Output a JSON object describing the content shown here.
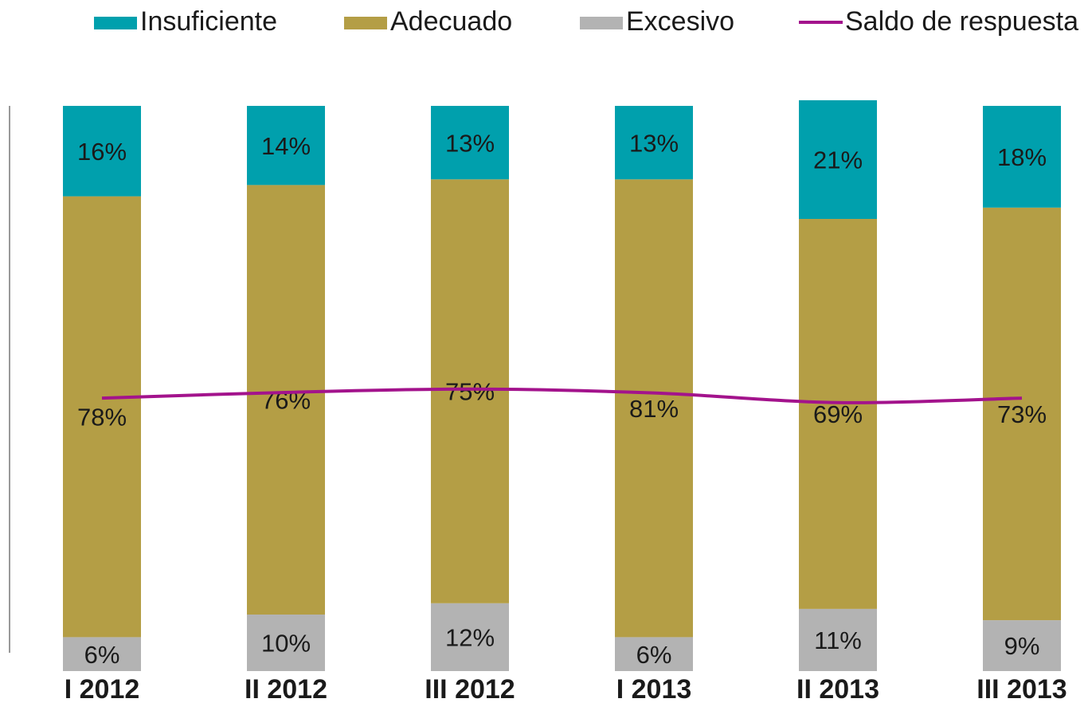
{
  "chart_data": {
    "type": "bar",
    "stacked": true,
    "categories": [
      "I 2012",
      "II 2012",
      "III 2012",
      "I 2013",
      "II 2013",
      "III 2013"
    ],
    "series": [
      {
        "name": "Insuficiente",
        "color": "#00a0ad",
        "values": [
          16,
          14,
          13,
          13,
          21,
          18
        ],
        "value_labels": [
          "16%",
          "14%",
          "13%",
          "13%",
          "21%",
          "18%"
        ]
      },
      {
        "name": "Adecuado",
        "color": "#b49e45",
        "values": [
          78,
          76,
          75,
          81,
          69,
          73
        ],
        "value_labels": [
          "78%",
          "76%",
          "75%",
          "81%",
          "69%",
          "73%"
        ]
      },
      {
        "name": "Excesivo",
        "color": "#b3b3b3",
        "values": [
          6,
          10,
          12,
          6,
          11,
          9
        ],
        "value_labels": [
          "6%",
          "10%",
          "12%",
          "6%",
          "11%",
          "9%"
        ]
      },
      {
        "name": "Saldo de respuesta",
        "color": "#a3138c",
        "type": "line",
        "values": [
          48.3,
          49.3,
          49.9,
          49.2,
          47.5,
          48.3
        ]
      }
    ],
    "ylim": [
      0,
      100
    ]
  }
}
